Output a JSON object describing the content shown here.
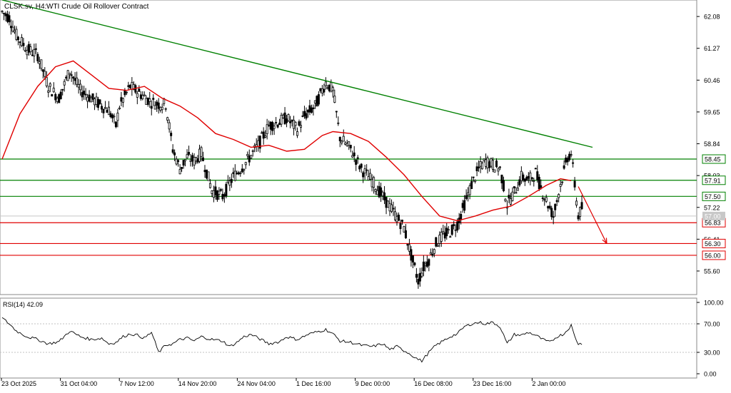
{
  "header": {
    "symbol_timeframe": "CLSK.sv, H4:",
    "instrument": "WTI Crude Oil Rollover Contract"
  },
  "rsi_panel": {
    "label": "RSI(14) 42.09"
  },
  "colors": {
    "candle": "#000000",
    "moving_average": "#e00000",
    "trendline": "#008000",
    "resistance_level": "#008000",
    "support_level": "#e00000",
    "projection_arrow": "#e00000",
    "rsi_line": "#000000",
    "grid_dotted": "#c0c0c0"
  },
  "chart_data": [
    {
      "type": "candlestick",
      "panel": "price",
      "y_ticks": [
        "62.08",
        "61.27",
        "60.46",
        "59.65",
        "58.84",
        "58.03",
        "57.22",
        "56.41",
        "55.60"
      ],
      "ylim": [
        55.0,
        62.5
      ],
      "x_ticks": [
        "23 Oct 2025",
        "31 Oct 04:00",
        "7 Nov 12:00",
        "14 Nov 20:00",
        "24 Nov 04:00",
        "1 Dec 16:00",
        "9 Dec 00:00",
        "16 Dec 08:00",
        "23 Dec 16:00",
        "2 Jan 00:00"
      ],
      "current_price": "57.00",
      "price_path": [
        [
          0,
          62.2
        ],
        [
          4,
          62.05
        ],
        [
          8,
          61.6
        ],
        [
          14,
          61.25
        ],
        [
          20,
          61.1
        ],
        [
          26,
          60.3
        ],
        [
          32,
          60.0
        ],
        [
          38,
          60.7
        ],
        [
          44,
          60.2
        ],
        [
          50,
          60.0
        ],
        [
          56,
          59.8
        ],
        [
          60,
          59.7
        ],
        [
          64,
          59.3
        ],
        [
          66,
          59.8
        ],
        [
          72,
          60.3
        ],
        [
          78,
          60.1
        ],
        [
          84,
          59.9
        ],
        [
          88,
          59.85
        ],
        [
          92,
          59.85
        ],
        [
          96,
          58.7
        ],
        [
          100,
          58.2
        ],
        [
          104,
          58.5
        ],
        [
          108,
          58.4
        ],
        [
          112,
          58.6
        ],
        [
          118,
          57.65
        ],
        [
          124,
          57.5
        ],
        [
          130,
          58.0
        ],
        [
          136,
          58.3
        ],
        [
          140,
          58.55
        ],
        [
          144,
          58.8
        ],
        [
          150,
          59.3
        ],
        [
          156,
          59.4
        ],
        [
          160,
          59.5
        ],
        [
          166,
          59.2
        ],
        [
          170,
          59.55
        ],
        [
          176,
          59.8
        ],
        [
          182,
          60.4
        ],
        [
          186,
          60.2
        ],
        [
          190,
          59.0
        ],
        [
          196,
          58.7
        ],
        [
          202,
          58.2
        ],
        [
          208,
          57.9
        ],
        [
          214,
          57.5
        ],
        [
          220,
          57.1
        ],
        [
          226,
          56.7
        ],
        [
          230,
          56.0
        ],
        [
          234,
          55.35
        ],
        [
          237,
          55.7
        ],
        [
          240,
          55.9
        ],
        [
          244,
          56.3
        ],
        [
          248,
          56.5
        ],
        [
          252,
          56.6
        ],
        [
          256,
          56.8
        ],
        [
          260,
          57.3
        ],
        [
          264,
          57.8
        ],
        [
          268,
          58.2
        ],
        [
          272,
          58.4
        ],
        [
          276,
          58.3
        ],
        [
          280,
          58.2
        ],
        [
          284,
          57.3
        ],
        [
          288,
          57.6
        ],
        [
          292,
          58.0
        ],
        [
          296,
          57.9
        ],
        [
          300,
          58.1
        ],
        [
          304,
          57.6
        ],
        [
          308,
          57.2
        ],
        [
          310,
          57.0
        ],
        [
          314,
          57.8
        ],
        [
          318,
          58.5
        ],
        [
          320,
          58.6
        ],
        [
          322,
          57.8
        ],
        [
          324,
          57.0
        ],
        [
          326,
          57.2
        ]
      ],
      "series": [
        {
          "name": "",
          "kind": "moving_average",
          "path": [
            [
              0,
              58.45
            ],
            [
              10,
              59.6
            ],
            [
              20,
              60.3
            ],
            [
              30,
              60.8
            ],
            [
              40,
              60.95
            ],
            [
              50,
              60.6
            ],
            [
              60,
              60.25
            ],
            [
              70,
              60.2
            ],
            [
              80,
              60.3
            ],
            [
              90,
              60.0
            ],
            [
              100,
              59.8
            ],
            [
              110,
              59.5
            ],
            [
              120,
              59.1
            ],
            [
              130,
              58.95
            ],
            [
              140,
              58.75
            ],
            [
              150,
              58.8
            ],
            [
              160,
              58.65
            ],
            [
              170,
              58.7
            ],
            [
              180,
              59.05
            ],
            [
              186,
              59.15
            ],
            [
              196,
              59.1
            ],
            [
              206,
              58.9
            ],
            [
              216,
              58.5
            ],
            [
              226,
              58.05
            ],
            [
              236,
              57.5
            ],
            [
              246,
              57.0
            ],
            [
              256,
              56.88
            ],
            [
              266,
              57.0
            ],
            [
              276,
              57.15
            ],
            [
              286,
              57.25
            ],
            [
              296,
              57.5
            ],
            [
              306,
              57.78
            ],
            [
              314,
              57.95
            ],
            [
              320,
              57.9
            ]
          ]
        },
        {
          "name": "",
          "kind": "trendline",
          "path": [
            [
              0,
              62.5
            ],
            [
              332,
              58.75
            ]
          ]
        }
      ],
      "levels": [
        {
          "value": 58.45,
          "label": "58.45",
          "kind": "resistance"
        },
        {
          "value": 57.91,
          "label": "57.91",
          "kind": "resistance"
        },
        {
          "value": 57.5,
          "label": "57.50",
          "kind": "resistance"
        },
        {
          "value": 56.83,
          "label": "56.83",
          "kind": "support"
        },
        {
          "value": 56.3,
          "label": "56.30",
          "kind": "support"
        },
        {
          "value": 56.0,
          "label": "56.00",
          "kind": "support"
        }
      ],
      "projection_arrow": {
        "from": [
          324,
          57.75
        ],
        "to": [
          340,
          56.3
        ]
      }
    },
    {
      "type": "line",
      "panel": "rsi",
      "y_ticks": [
        "100.00",
        "70.00",
        "30.00",
        "0.00"
      ],
      "ylim": [
        0,
        100
      ],
      "levels": [
        70,
        30
      ],
      "values": [
        [
          0,
          78
        ],
        [
          4,
          70
        ],
        [
          8,
          60
        ],
        [
          14,
          52
        ],
        [
          20,
          48
        ],
        [
          26,
          42
        ],
        [
          32,
          45
        ],
        [
          38,
          60
        ],
        [
          44,
          52
        ],
        [
          50,
          48
        ],
        [
          56,
          50
        ],
        [
          60,
          42
        ],
        [
          64,
          44
        ],
        [
          68,
          52
        ],
        [
          72,
          56
        ],
        [
          76,
          54
        ],
        [
          80,
          50
        ],
        [
          84,
          58
        ],
        [
          88,
          30
        ],
        [
          92,
          40
        ],
        [
          96,
          42
        ],
        [
          100,
          48
        ],
        [
          104,
          50
        ],
        [
          108,
          46
        ],
        [
          112,
          52
        ],
        [
          118,
          48
        ],
        [
          124,
          46
        ],
        [
          128,
          38
        ],
        [
          132,
          44
        ],
        [
          136,
          52
        ],
        [
          140,
          55
        ],
        [
          144,
          50
        ],
        [
          150,
          42
        ],
        [
          156,
          45
        ],
        [
          160,
          52
        ],
        [
          166,
          48
        ],
        [
          172,
          55
        ],
        [
          176,
          58
        ],
        [
          182,
          62
        ],
        [
          186,
          56
        ],
        [
          190,
          46
        ],
        [
          196,
          44
        ],
        [
          202,
          40
        ],
        [
          208,
          38
        ],
        [
          214,
          42
        ],
        [
          218,
          34
        ],
        [
          222,
          38
        ],
        [
          228,
          30
        ],
        [
          234,
          20
        ],
        [
          236,
          18
        ],
        [
          240,
          30
        ],
        [
          244,
          40
        ],
        [
          248,
          46
        ],
        [
          252,
          52
        ],
        [
          256,
          56
        ],
        [
          260,
          66
        ],
        [
          264,
          70
        ],
        [
          268,
          72
        ],
        [
          272,
          70
        ],
        [
          276,
          72
        ],
        [
          280,
          66
        ],
        [
          284,
          42
        ],
        [
          288,
          55
        ],
        [
          292,
          54
        ],
        [
          296,
          58
        ],
        [
          300,
          54
        ],
        [
          304,
          48
        ],
        [
          308,
          44
        ],
        [
          312,
          52
        ],
        [
          316,
          56
        ],
        [
          318,
          62
        ],
        [
          320,
          68
        ],
        [
          322,
          52
        ],
        [
          324,
          42
        ],
        [
          326,
          42
        ]
      ]
    }
  ]
}
